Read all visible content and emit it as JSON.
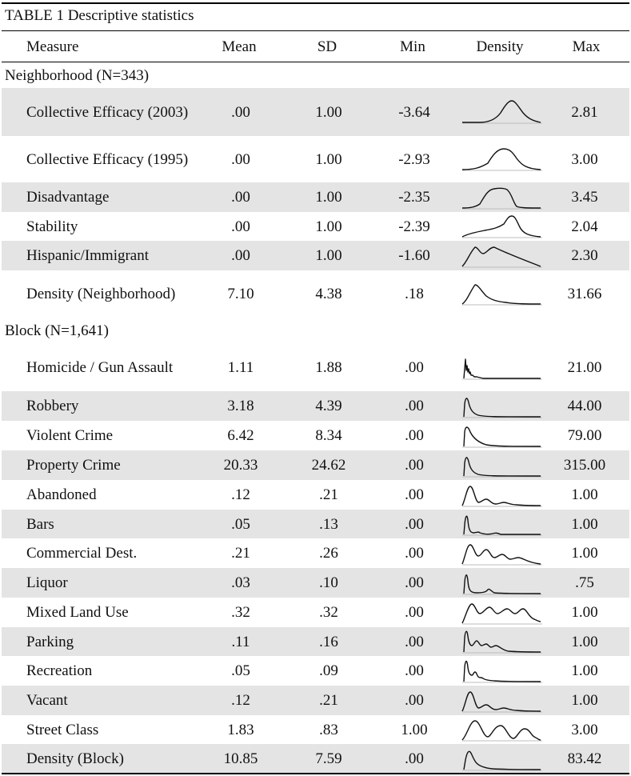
{
  "table": {
    "caption": "TABLE 1 Descriptive statistics",
    "headers": {
      "measure": "Measure",
      "mean": "Mean",
      "sd": "SD",
      "min": "Min",
      "density": "Density",
      "max": "Max"
    },
    "rows": [
      {
        "kind": "section",
        "label": "Neighborhood (N=343)"
      },
      {
        "kind": "data",
        "shade": true,
        "measure": "Collective Efficacy (2003)",
        "mean": ".00",
        "sd": "1.00",
        "min": "-3.64",
        "max": "2.81",
        "density": "bell-right"
      },
      {
        "kind": "data",
        "shade": false,
        "measure": "Collective Efficacy (1995)",
        "mean": ".00",
        "sd": "1.00",
        "min": "-2.93",
        "max": "3.00",
        "density": "bell-wide"
      },
      {
        "kind": "data",
        "shade": true,
        "measure": "Disadvantage",
        "mean": ".00",
        "sd": "1.00",
        "min": "-2.35",
        "max": "3.45",
        "density": "plateau"
      },
      {
        "kind": "data",
        "shade": false,
        "measure": "Stability",
        "mean": ".00",
        "sd": "1.00",
        "min": "-2.39",
        "max": "2.04",
        "density": "left-skew"
      },
      {
        "kind": "data",
        "shade": true,
        "measure": "Hispanic/Immigrant",
        "mean": ".00",
        "sd": "1.00",
        "min": "-1.60",
        "max": "2.30",
        "density": "bimodal-decline"
      },
      {
        "kind": "data",
        "shade": false,
        "measure": "Density (Neighborhood)",
        "mean": "7.10",
        "sd": "4.38",
        "min": ".18",
        "max": "31.66",
        "density": "right-skew"
      },
      {
        "kind": "section",
        "label": "Block (N=1,641)"
      },
      {
        "kind": "data",
        "shade": false,
        "measure": "Homicide / Gun Assault",
        "mean": "1.11",
        "sd": "1.88",
        "min": ".00",
        "max": "21.00",
        "density": "spike-jagged"
      },
      {
        "kind": "data",
        "shade": true,
        "measure": "Robbery",
        "mean": "3.18",
        "sd": "4.39",
        "min": ".00",
        "max": "44.00",
        "density": "spike-decay"
      },
      {
        "kind": "data",
        "shade": false,
        "measure": "Violent Crime",
        "mean": "6.42",
        "sd": "8.34",
        "min": ".00",
        "max": "79.00",
        "density": "spike-decay-slow"
      },
      {
        "kind": "data",
        "shade": true,
        "measure": "Property Crime",
        "mean": "20.33",
        "sd": "24.62",
        "min": ".00",
        "max": "315.00",
        "density": "spike-decay"
      },
      {
        "kind": "data",
        "shade": false,
        "measure": "Abandoned",
        "mean": ".12",
        "sd": ".21",
        "min": ".00",
        "max": "1.00",
        "density": "multi-small"
      },
      {
        "kind": "data",
        "shade": true,
        "measure": "Bars",
        "mean": ".05",
        "sd": ".13",
        "min": ".00",
        "max": "1.00",
        "density": "spike-tiny"
      },
      {
        "kind": "data",
        "shade": false,
        "measure": "Commercial Dest.",
        "mean": ".21",
        "sd": ".26",
        "min": ".00",
        "max": "1.00",
        "density": "multi-decay"
      },
      {
        "kind": "data",
        "shade": true,
        "measure": "Liquor",
        "mean": ".03",
        "sd": ".10",
        "min": ".00",
        "max": ".75",
        "density": "spike-one-bump"
      },
      {
        "kind": "data",
        "shade": false,
        "measure": "Mixed Land Use",
        "mean": ".32",
        "sd": ".32",
        "min": ".00",
        "max": "1.00",
        "density": "multi-even"
      },
      {
        "kind": "data",
        "shade": true,
        "measure": "Parking",
        "mean": ".11",
        "sd": ".16",
        "min": ".00",
        "max": "1.00",
        "density": "spike-ripples"
      },
      {
        "kind": "data",
        "shade": false,
        "measure": "Recreation",
        "mean": ".05",
        "sd": ".09",
        "min": ".00",
        "max": "1.00",
        "density": "spike-two-bumps"
      },
      {
        "kind": "data",
        "shade": true,
        "measure": "Vacant",
        "mean": ".12",
        "sd": ".21",
        "min": ".00",
        "max": "1.00",
        "density": "multi-small"
      },
      {
        "kind": "data",
        "shade": false,
        "measure": "Street Class",
        "mean": "1.83",
        "sd": ".83",
        "min": "1.00",
        "max": "3.00",
        "density": "three-peaks"
      },
      {
        "kind": "data",
        "shade": true,
        "measure": "Density (Block)",
        "mean": "10.85",
        "sd": "7.59",
        "min": ".00",
        "max": "83.42",
        "density": "spike-bump"
      }
    ]
  }
}
